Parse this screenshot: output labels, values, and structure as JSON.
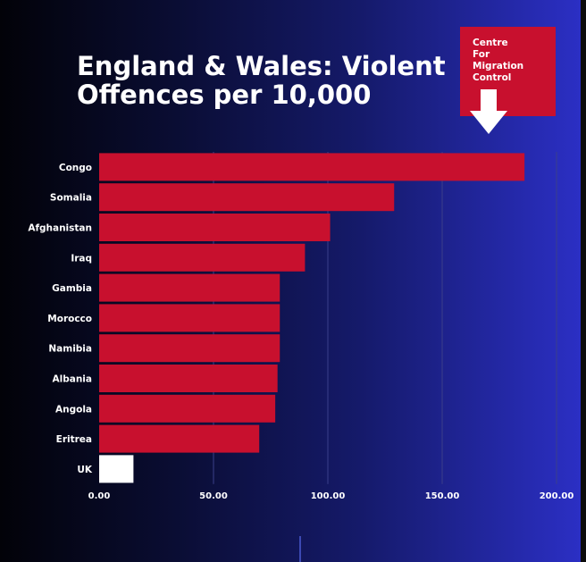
{
  "logo": {
    "lines": [
      "Centre",
      "For",
      "Migration",
      "Control"
    ],
    "arrow_icon": "down-arrow-icon"
  },
  "colors": {
    "bar": "#c8102e",
    "highlight_bar": "#ffffff",
    "logo_bg": "#c8102e"
  },
  "chart_data": {
    "type": "bar",
    "orientation": "horizontal",
    "title": "England & Wales: Violent Offences per 10,000",
    "title_lines": [
      "England & Wales: Violent",
      "Offences per 10,000"
    ],
    "xlabel": "",
    "ylabel": "",
    "xlim": [
      0,
      200
    ],
    "xticks": [
      0,
      50,
      100,
      150,
      200
    ],
    "xtick_labels": [
      "0.00",
      "50.00",
      "100.00",
      "150.00",
      "200.00"
    ],
    "grid": true,
    "categories": [
      "Congo",
      "Somalia",
      "Afghanistan",
      "Iraq",
      "Gambia",
      "Morocco",
      "Namibia",
      "Albania",
      "Angola",
      "Eritrea",
      "UK"
    ],
    "values": [
      186,
      129,
      101,
      90,
      79,
      79,
      79,
      78,
      77,
      70,
      15
    ],
    "highlight": "UK"
  }
}
